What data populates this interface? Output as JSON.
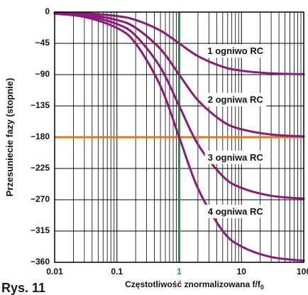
{
  "chart_data": {
    "type": "line",
    "title": "",
    "xlabel": "Częstotliwość znormalizowana f/f",
    "xlabel_sub": "0",
    "ylabel": "Przesuniecie fazy (stopnie)",
    "x_scale": "log",
    "xlim": [
      0.01,
      100
    ],
    "ylim": [
      -360,
      0
    ],
    "x_ticks": [
      0.01,
      0.1,
      1,
      10,
      100
    ],
    "x_tick_labels": [
      "0.01",
      "0.1",
      "1",
      "10",
      "100"
    ],
    "y_ticks": [
      0,
      -45,
      -90,
      -135,
      -180,
      -225,
      -270,
      -315,
      -360
    ],
    "y_tick_labels": [
      "0",
      "−45",
      "−90",
      "−135",
      "−180",
      "−225",
      "−270",
      "−315",
      "−360"
    ],
    "grid": true,
    "reference_lines": [
      {
        "axis": "y",
        "value": -180,
        "color": "#e07a12"
      },
      {
        "axis": "x",
        "value": 1,
        "color": "#1a9a3a"
      }
    ],
    "series": [
      {
        "name": "1 ogniwo RC",
        "color": "#8b1a7a",
        "label_pos": [
          8,
          -57
        ],
        "x": [
          0.01,
          0.03,
          0.1,
          0.2,
          0.5,
          1,
          2,
          5,
          10,
          30,
          100
        ],
        "y": [
          -0.6,
          -1.7,
          -5.7,
          -11.3,
          -26.6,
          -45,
          -63.4,
          -78.7,
          -84.3,
          -88.1,
          -89.4
        ]
      },
      {
        "name": "2 ogniwa RC",
        "color": "#8b1a7a",
        "label_pos": [
          8,
          -127
        ],
        "x": [
          0.01,
          0.03,
          0.1,
          0.2,
          0.5,
          1,
          2,
          5,
          10,
          30,
          100
        ],
        "y": [
          -1.1,
          -3.4,
          -11.4,
          -22.6,
          -53.1,
          -90,
          -126.9,
          -157.4,
          -168.6,
          -176.2,
          -178.9
        ]
      },
      {
        "name": "3 ogniwa RC",
        "color": "#8b1a7a",
        "label_pos": [
          8,
          -210
        ],
        "x": [
          0.01,
          0.03,
          0.1,
          0.2,
          0.5,
          1,
          2,
          5,
          10,
          30,
          100
        ],
        "y": [
          -1.7,
          -5.2,
          -17.1,
          -33.9,
          -79.7,
          -135,
          -190.3,
          -236.1,
          -252.9,
          -264.3,
          -268.3
        ]
      },
      {
        "name": "4 ogniwa RC",
        "color": "#8b1a7a",
        "label_pos": [
          8,
          -288
        ],
        "x": [
          0.01,
          0.03,
          0.1,
          0.2,
          0.5,
          1,
          2,
          5,
          10,
          30,
          100
        ],
        "y": [
          -2.3,
          -6.9,
          -22.8,
          -45.2,
          -106.3,
          -180,
          -253.7,
          -314.9,
          -337.2,
          -352.4,
          -357.7
        ]
      }
    ]
  },
  "figure_label": "Rys. 11"
}
